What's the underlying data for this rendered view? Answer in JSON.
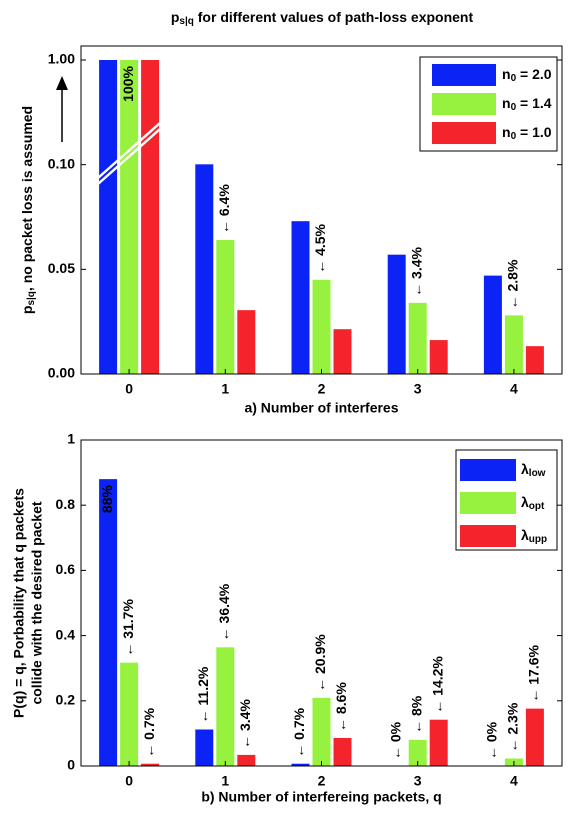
{
  "chart_data": [
    {
      "type": "bar",
      "title": [
        "p",
        "s|q",
        " for different values of path-loss exponent"
      ],
      "x_label": "a) Number of interferes",
      "y_label": [
        [
          "p",
          "s|q",
          ", no packet loss is assumed"
        ]
      ],
      "categories": [
        "0",
        "1",
        "2",
        "3",
        "4"
      ],
      "axis_break": true,
      "ylim": [
        0,
        1
      ],
      "yticks": [
        {
          "value": 0,
          "label": "0.00"
        },
        {
          "value": 0.05,
          "label": "0.05"
        },
        {
          "value": 0.1,
          "label": "0.10"
        },
        {
          "value": 1,
          "label": "1.00"
        }
      ],
      "legend": "upper right",
      "series": [
        {
          "name": [
            "n",
            "0",
            " = 2.0"
          ],
          "color": "#0b24f5",
          "values": [
            1.0,
            0.103,
            0.073,
            0.057,
            0.047
          ]
        },
        {
          "name": [
            "n",
            "0",
            " = 1.4"
          ],
          "color": "#96f23f",
          "values": [
            1.0,
            0.064,
            0.045,
            0.034,
            0.028
          ],
          "value_labels": [
            "100%",
            "← 6.4%",
            "← 4.5%",
            "← 3.4%",
            "← 2.8%"
          ]
        },
        {
          "name": [
            "n",
            "0",
            " = 1.0"
          ],
          "color": "#f4242c",
          "values": [
            1.0,
            0.0305,
            0.0214,
            0.0162,
            0.0133
          ]
        }
      ]
    },
    {
      "type": "bar",
      "x_label": "b) Number of interfereing packets, q",
      "y_label": [
        "P(q) = q, Porbability that q packets",
        "collide with the desired packet"
      ],
      "categories": [
        "0",
        "1",
        "2",
        "3",
        "4"
      ],
      "ylim": [
        0,
        1
      ],
      "yticks": [
        0,
        0.2,
        0.4,
        0.6,
        0.8,
        1
      ],
      "legend": "upper right",
      "series": [
        {
          "name": [
            "λ",
            "low"
          ],
          "color": "#0b24f5",
          "values": [
            0.88,
            0.112,
            0.007,
            0,
            0
          ],
          "value_labels": [
            "88%",
            "← 11.2%",
            "← 0.7%",
            "← 0%",
            "← 0%"
          ]
        },
        {
          "name": [
            "λ",
            "opt"
          ],
          "color": "#96f23f",
          "values": [
            0.317,
            0.364,
            0.209,
            0.08,
            0.023
          ],
          "value_labels": [
            "← 31.7%",
            "← 36.4%",
            "← 20.9%",
            "← 8%",
            "← 2.3%"
          ]
        },
        {
          "name": [
            "λ",
            "upp"
          ],
          "color": "#f4242c",
          "values": [
            0.007,
            0.034,
            0.086,
            0.142,
            0.176
          ],
          "value_labels": [
            "← 0.7%",
            "← 3.4%",
            "← 8.6%",
            "← 14.2%",
            "← 17.6%"
          ]
        }
      ]
    }
  ]
}
